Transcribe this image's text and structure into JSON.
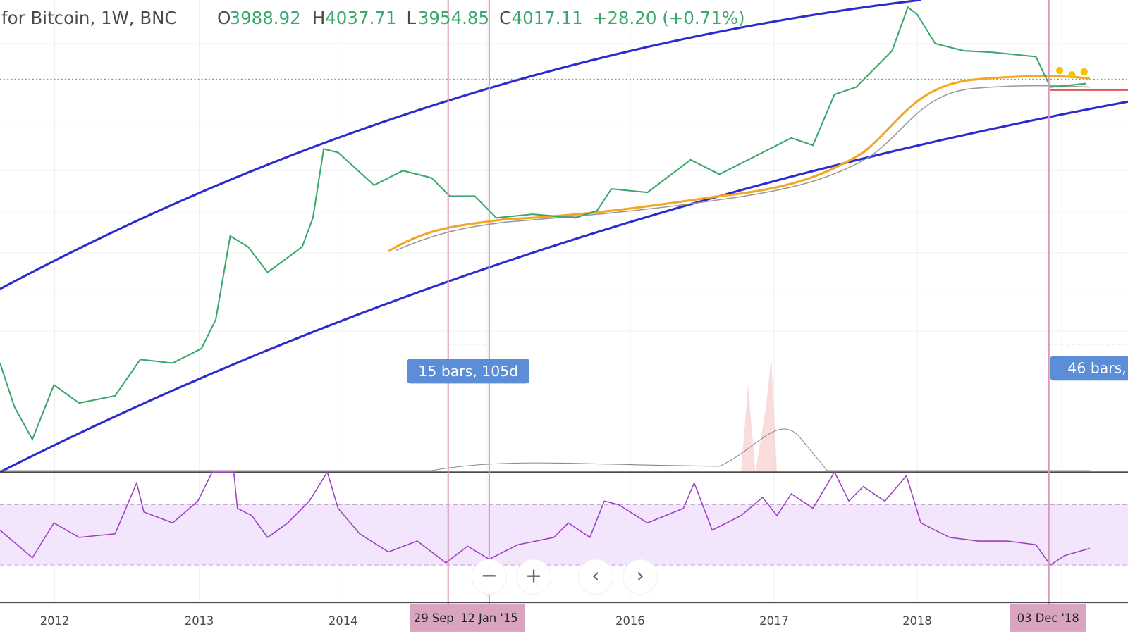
{
  "header": {
    "symbol": "for Bitcoin, 1W, BNC",
    "open_label": "O",
    "open": "3988.92",
    "high_label": "H",
    "high": "4037.71",
    "low_label": "L",
    "low": "3954.85",
    "close_label": "C",
    "close": "4017.11",
    "change": "+28.20 (+0.71%)"
  },
  "measures": [
    "15 bars, 105d",
    "46 bars, "
  ],
  "x_axis": {
    "labels": [
      "2012",
      "2013",
      "2014",
      "2016",
      "2017",
      "2018"
    ],
    "markers": [
      "29 Sep",
      "12 Jan '15",
      "03 Dec '18"
    ]
  },
  "controls": [
    "−",
    "+",
    "‹",
    "›"
  ]
}
